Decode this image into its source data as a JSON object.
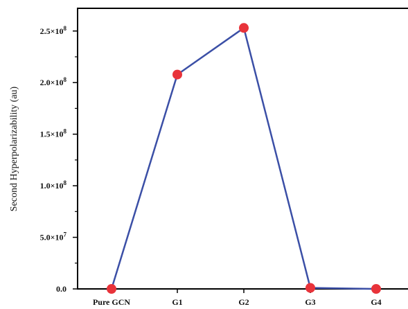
{
  "chart_data": {
    "type": "line",
    "title": "",
    "xlabel": "",
    "ylabel": "Second Hyperpolarizability (au)",
    "categories": [
      "Pure GCN",
      "G1",
      "G2",
      "G3",
      "G4"
    ],
    "series": [
      {
        "values": [
          0,
          207800000,
          253000000,
          1000000,
          0
        ]
      }
    ],
    "ylim": [
      0,
      272000000
    ],
    "yticks": [
      {
        "value": 0,
        "label": "0.0"
      },
      {
        "value": 50000000,
        "label": "5.0×10",
        "exp": "7"
      },
      {
        "value": 100000000,
        "label": "1.0×10",
        "exp": "8"
      },
      {
        "value": 150000000,
        "label": "1.5×10",
        "exp": "8"
      },
      {
        "value": 200000000,
        "label": "2.0×10",
        "exp": "8"
      },
      {
        "value": 250000000,
        "label": "2.5×10",
        "exp": "8"
      }
    ],
    "grid": false,
    "legend": "none",
    "line_color": "#3b4fa6",
    "marker_color": "#e8333a"
  }
}
